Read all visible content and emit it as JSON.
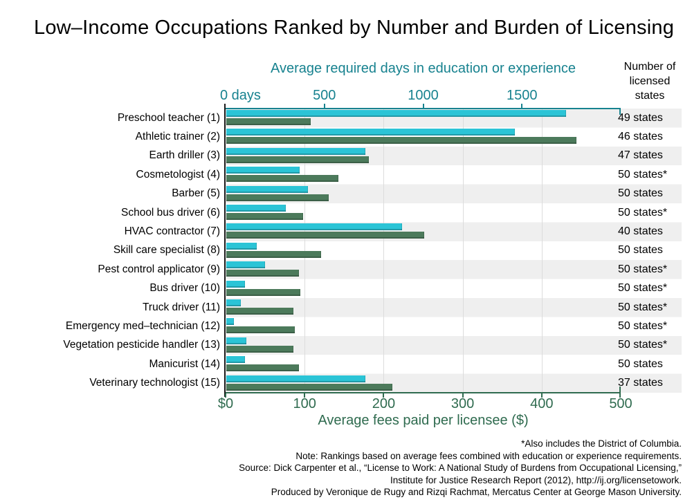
{
  "title": "Low–Income Occupations Ranked by Number and Burden of Licensing",
  "right_column_header": "Number of\nlicensed\nstates",
  "colors": {
    "days_bar": "#2BC4D6",
    "fees_bar": "#4C7A5B",
    "days_axis_text": "#17828F",
    "fees_axis_text": "#2F6B4F",
    "row_stripe": "#EFEFEF",
    "gridline": "#DCDCDC"
  },
  "chart_data": {
    "type": "bar",
    "orientation": "horizontal",
    "grid": "vertical gridlines at each $100 of the fees axis",
    "top_axis": {
      "title": "Average required days in education or experience",
      "range": [
        0,
        2000
      ],
      "ticks": [
        {
          "value": 0,
          "label": "0 days"
        },
        {
          "value": 500,
          "label": "500"
        },
        {
          "value": 1000,
          "label": "1000"
        },
        {
          "value": 1500,
          "label": "1500"
        }
      ]
    },
    "bottom_axis": {
      "title": "Average fees paid per licensee ($)",
      "range": [
        0,
        500
      ],
      "ticks": [
        {
          "value": 0,
          "label": "$0"
        },
        {
          "value": 100,
          "label": "100"
        },
        {
          "value": 200,
          "label": "200"
        },
        {
          "value": 300,
          "label": "300"
        },
        {
          "value": 400,
          "label": "400"
        },
        {
          "value": 500,
          "label": "500"
        }
      ]
    },
    "series_names": {
      "days": "Average required days in education or experience",
      "fees": "Average fees paid per licensee ($)"
    },
    "rows": [
      {
        "label": "Preschool teacher (1)",
        "days": 1720,
        "fees": 107,
        "states": "49 states"
      },
      {
        "label": "Athletic trainer (2)",
        "days": 1460,
        "fees": 443,
        "states": "46 states"
      },
      {
        "label": "Earth driller (3)",
        "days": 705,
        "fees": 180,
        "states": "47 states"
      },
      {
        "label": "Cosmetologist (4)",
        "days": 372,
        "fees": 142,
        "states": "50 states*"
      },
      {
        "label": "Barber (5)",
        "days": 415,
        "fees": 130,
        "states": "50 states"
      },
      {
        "label": "School bus driver (6)",
        "days": 300,
        "fees": 97,
        "states": "50 states*"
      },
      {
        "label": "HVAC contractor (7)",
        "days": 890,
        "fees": 250,
        "states": "40 states"
      },
      {
        "label": "Skill care specialist (8)",
        "days": 155,
        "fees": 120,
        "states": "50 states"
      },
      {
        "label": "Pest control applicator (9)",
        "days": 195,
        "fees": 92,
        "states": "50 states*"
      },
      {
        "label": "Bus driver (10)",
        "days": 95,
        "fees": 94,
        "states": "50 states*"
      },
      {
        "label": "Truck driver (11)",
        "days": 75,
        "fees": 85,
        "states": "50 states*"
      },
      {
        "label": "Emergency med–technician (12)",
        "days": 40,
        "fees": 87,
        "states": "50 states*"
      },
      {
        "label": "Vegetation pesticide handler (13)",
        "days": 100,
        "fees": 85,
        "states": "50 states*"
      },
      {
        "label": "Manicurist (14)",
        "days": 95,
        "fees": 92,
        "states": "50 states"
      },
      {
        "label": "Veterinary technologist (15)",
        "days": 705,
        "fees": 210,
        "states": "37 states"
      }
    ]
  },
  "footnotes": [
    "*Also includes the District of Columbia.",
    "Note: Rankings based on average fees combined with education or experience requirements.",
    "Source: Dick Carpenter et al., “License to Work: A National Study of Burdens from Occupational Licensing,”",
    "Institute for Justice Research Report (2012), http://ij.org/licensetowork.",
    "Produced by Veronique de Rugy and Rizqi Rachmat, Mercatus Center at George Mason University."
  ]
}
